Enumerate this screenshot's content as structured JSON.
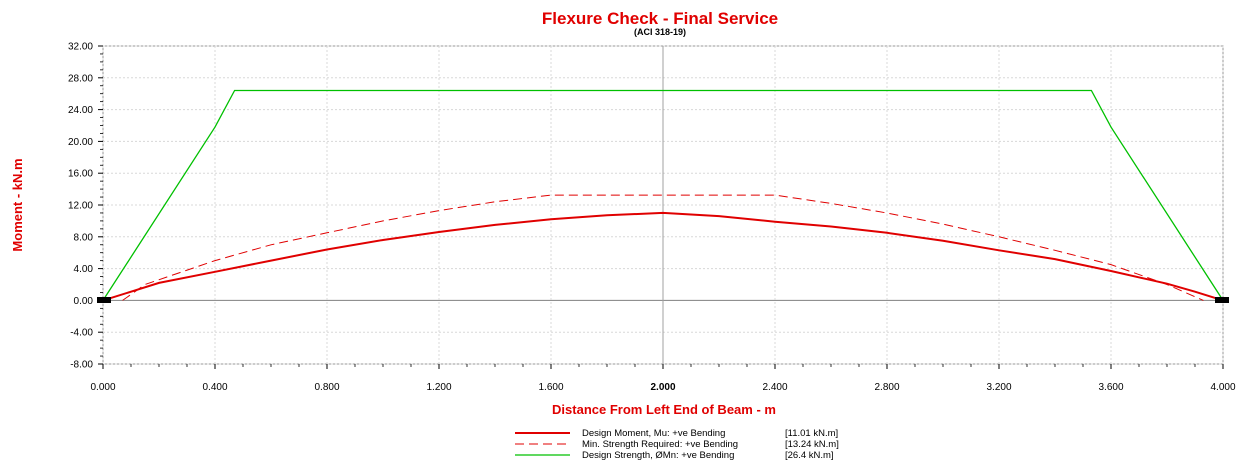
{
  "chart_data": {
    "type": "line",
    "title": "Flexure Check - Final Service",
    "subtitle": "(ACI 318-19)",
    "xlabel": "Distance From Left End of Beam - m",
    "ylabel": "Moment - kN.m",
    "xlim": [
      0,
      4.0
    ],
    "ylim": [
      -8,
      32
    ],
    "x_ticks": [
      "0.000",
      "0.400",
      "0.800",
      "1.200",
      "1.600",
      "2.000",
      "2.400",
      "2.800",
      "3.200",
      "3.600",
      "4.000"
    ],
    "y_ticks": [
      "32.00",
      "28.00",
      "24.00",
      "20.00",
      "16.00",
      "12.00",
      "8.00",
      "4.00",
      "0.00",
      "-4.00",
      "-8.00"
    ],
    "grid": true,
    "legend_position": "bottom",
    "series": [
      {
        "name": "Design Moment, Mu: +ve Bending",
        "value_label": "[11.01  kN.m]",
        "color": "#e00000",
        "style": "solid",
        "x": [
          0.0,
          0.1,
          0.2,
          0.4,
          0.6,
          0.8,
          1.0,
          1.2,
          1.4,
          1.6,
          1.8,
          2.0,
          2.2,
          2.4,
          2.6,
          2.8,
          3.0,
          3.2,
          3.4,
          3.6,
          3.8,
          3.9,
          4.0
        ],
        "y": [
          0.0,
          1.1,
          2.2,
          3.6,
          5.0,
          6.4,
          7.6,
          8.6,
          9.5,
          10.2,
          10.7,
          11.01,
          10.6,
          9.9,
          9.3,
          8.5,
          7.5,
          6.3,
          5.2,
          3.7,
          2.1,
          1.1,
          0.0
        ]
      },
      {
        "name": "Min. Strength Required: +ve Bending",
        "value_label": "[13.24  kN.m]",
        "color": "#e00000",
        "style": "dashed",
        "x": [
          0.07,
          0.15,
          0.4,
          0.6,
          0.8,
          1.0,
          1.2,
          1.4,
          1.6,
          1.8,
          2.0,
          2.2,
          2.4,
          2.6,
          2.8,
          3.0,
          3.2,
          3.4,
          3.6,
          3.8,
          3.93
        ],
        "y": [
          0.0,
          2.0,
          5.0,
          7.0,
          8.5,
          10.0,
          11.3,
          12.4,
          13.24,
          13.24,
          13.24,
          13.24,
          13.24,
          12.2,
          11.0,
          9.6,
          8.0,
          6.3,
          4.5,
          2.0,
          0.0
        ]
      },
      {
        "name": "Design Strength, ØMn: +ve Bending",
        "value_label": "[26.4  kN.m]",
        "color": "#00c000",
        "style": "solid",
        "x": [
          0.0,
          0.4,
          0.47,
          3.53,
          3.6,
          4.0
        ],
        "y": [
          0.0,
          21.8,
          26.4,
          26.4,
          21.8,
          0.0
        ]
      }
    ]
  }
}
